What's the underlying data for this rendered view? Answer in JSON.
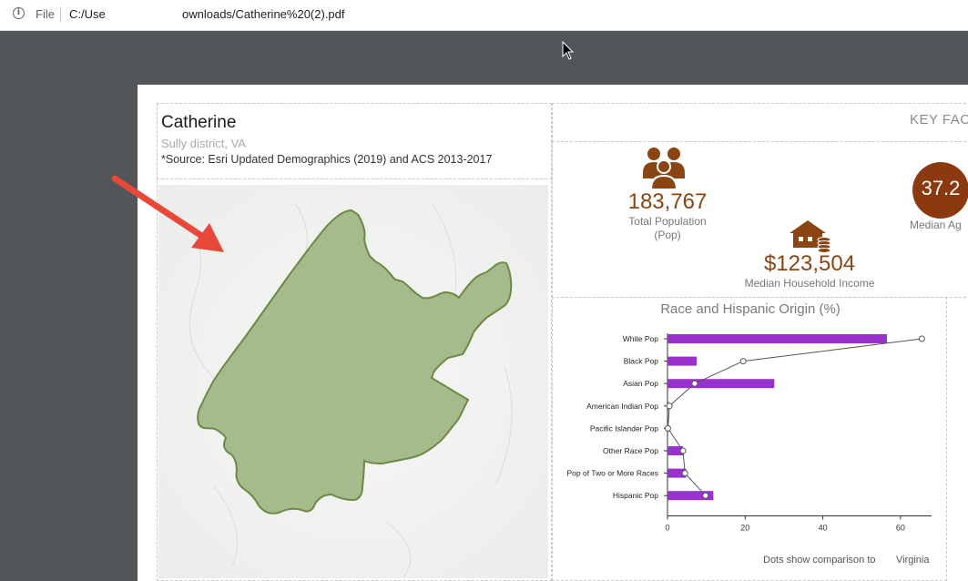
{
  "browser": {
    "file_label": "File",
    "url_part1": "C:/Use",
    "url_part2": "ownloads/Catherine%20(2).pdf"
  },
  "report": {
    "title": "Catherine",
    "subtitle": "Sully district, VA",
    "source": "*Source: Esri Updated Demographics (2019) and ACS 2013-2017"
  },
  "key_facts": {
    "title": "KEY FAC",
    "total_population": {
      "value": "183,767",
      "label_line1": "Total Population",
      "label_line2": "(Pop)"
    },
    "median_income": {
      "value": "$123,504",
      "label": "Median Household Income"
    },
    "median_age": {
      "value": "37.2",
      "label": "Median Ag"
    }
  },
  "colors": {
    "accent_brown": "#8b4513",
    "bar_purple": "#9932cc",
    "map_fill": "#9db57f",
    "map_stroke": "#6b8a45",
    "arrow_red": "#e8483a"
  },
  "chart_data": {
    "type": "bar",
    "title": "Race and Hispanic Origin (%)",
    "categories": [
      "White Pop",
      "Black Pop",
      "Asian Pop",
      "American Indian Pop",
      "Pacific Islander Pop",
      "Other Race Pop",
      "Pop of Two or More Races",
      "Hispanic Pop"
    ],
    "series": [
      {
        "values": [
          56.5,
          7.5,
          27.5,
          0.3,
          0.1,
          4.0,
          4.8,
          11.8
        ]
      },
      {
        "values": [
          65.5,
          19.5,
          7.0,
          0.5,
          0.1,
          4.0,
          4.5,
          9.8
        ]
      }
    ],
    "xlim": [
      0,
      68
    ],
    "xticks": [
      0,
      20,
      40,
      60
    ],
    "note": "Dots show comparison to",
    "comparison_region": "Virginia"
  }
}
